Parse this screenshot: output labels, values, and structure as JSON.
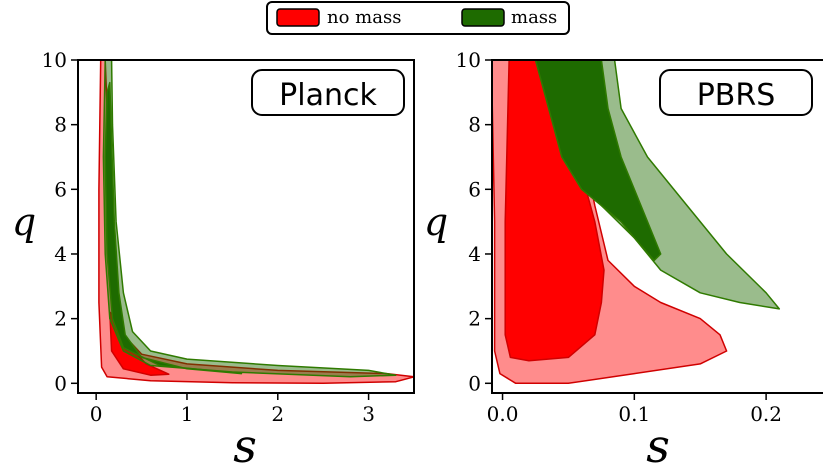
{
  "legend": {
    "entries": [
      {
        "label": "no mass",
        "color": "#ff0000"
      },
      {
        "label": "mass",
        "color": "#1e6b00"
      }
    ]
  },
  "chart_data": [
    {
      "type": "area",
      "title": "Planck",
      "xlabel": "s",
      "ylabel": "q",
      "xlim": [
        -0.2,
        3.5
      ],
      "ylim": [
        -0.3,
        10
      ],
      "xticks": [
        "0",
        "1",
        "2",
        "3"
      ],
      "yticks": [
        "0",
        "2",
        "4",
        "6",
        "8",
        "10"
      ],
      "grid": false,
      "legend_position": "top-center (shared)",
      "series": [
        {
          "name": "no mass",
          "level": "95%",
          "color": "#ff0000",
          "opacity": 0.45,
          "contour": [
            [
              0.05,
              10
            ],
            [
              0.03,
              6
            ],
            [
              0.03,
              2.5
            ],
            [
              0.06,
              0.5
            ],
            [
              0.12,
              0.2
            ],
            [
              0.6,
              0.08
            ],
            [
              1.5,
              0.02
            ],
            [
              2.5,
              0.0
            ],
            [
              3.3,
              0.05
            ],
            [
              3.5,
              0.2
            ],
            [
              3.2,
              0.3
            ],
            [
              2.0,
              0.4
            ],
            [
              1.0,
              0.6
            ],
            [
              0.5,
              0.9
            ],
            [
              0.3,
              1.5
            ],
            [
              0.22,
              3.0
            ],
            [
              0.16,
              5.5
            ],
            [
              0.12,
              8.5
            ],
            [
              0.1,
              10
            ]
          ]
        },
        {
          "name": "no mass",
          "level": "68%",
          "color": "#ff0000",
          "opacity": 1.0,
          "contour": [
            [
              0.15,
              2.2
            ],
            [
              0.17,
              1.0
            ],
            [
              0.3,
              0.45
            ],
            [
              0.6,
              0.25
            ],
            [
              0.8,
              0.28
            ],
            [
              0.55,
              0.6
            ],
            [
              0.35,
              1.2
            ],
            [
              0.25,
              2.0
            ]
          ]
        },
        {
          "name": "mass",
          "level": "95%",
          "color": "#1e6b00",
          "opacity": 0.45,
          "contour": [
            [
              0.1,
              10
            ],
            [
              0.08,
              7
            ],
            [
              0.1,
              4
            ],
            [
              0.15,
              2.0
            ],
            [
              0.3,
              1.0
            ],
            [
              0.6,
              0.55
            ],
            [
              1.5,
              0.35
            ],
            [
              2.8,
              0.2
            ],
            [
              3.3,
              0.25
            ],
            [
              3.0,
              0.4
            ],
            [
              2.0,
              0.55
            ],
            [
              1.0,
              0.75
            ],
            [
              0.6,
              1.0
            ],
            [
              0.4,
              1.6
            ],
            [
              0.3,
              2.8
            ],
            [
              0.22,
              5.0
            ],
            [
              0.18,
              8.0
            ],
            [
              0.17,
              10
            ]
          ]
        },
        {
          "name": "mass",
          "level": "68%",
          "color": "#1e6b00",
          "opacity": 1.0,
          "contour": [
            [
              0.12,
              9.0
            ],
            [
              0.1,
              7
            ],
            [
              0.12,
              4
            ],
            [
              0.18,
              2.0
            ],
            [
              0.3,
              1.1
            ],
            [
              0.7,
              0.55
            ],
            [
              1.6,
              0.3
            ],
            [
              1.0,
              0.45
            ],
            [
              0.5,
              0.8
            ],
            [
              0.32,
              1.5
            ],
            [
              0.25,
              2.8
            ],
            [
              0.2,
              5.0
            ],
            [
              0.17,
              7.5
            ],
            [
              0.15,
              9.3
            ]
          ]
        }
      ]
    },
    {
      "type": "area",
      "title": "PBRS",
      "xlabel": "s",
      "ylabel": "q",
      "xlim": [
        -0.008,
        0.25
      ],
      "ylim": [
        -0.3,
        10
      ],
      "xticks": [
        "0.0",
        "0.1",
        "0.2"
      ],
      "yticks": [
        "0",
        "2",
        "4",
        "6",
        "8",
        "10"
      ],
      "grid": false,
      "series": [
        {
          "name": "no mass",
          "level": "95%",
          "color": "#ff0000",
          "opacity": 0.45,
          "contour": [
            [
              -0.008,
              9.0
            ],
            [
              -0.006,
              5.0
            ],
            [
              -0.006,
              1.0
            ],
            [
              -0.002,
              0.3
            ],
            [
              0.01,
              0.0
            ],
            [
              0.05,
              0.0
            ],
            [
              0.1,
              0.3
            ],
            [
              0.15,
              0.6
            ],
            [
              0.17,
              1.0
            ],
            [
              0.165,
              1.5
            ],
            [
              0.15,
              2.0
            ],
            [
              0.12,
              2.5
            ],
            [
              0.1,
              3.0
            ],
            [
              0.08,
              3.8
            ],
            [
              0.07,
              5.5
            ],
            [
              0.06,
              7.5
            ],
            [
              0.05,
              9.0
            ],
            [
              0.045,
              10
            ],
            [
              -0.008,
              10
            ]
          ]
        },
        {
          "name": "no mass",
          "level": "68%",
          "color": "#ff0000",
          "opacity": 1.0,
          "contour": [
            [
              0.005,
              10
            ],
            [
              0.002,
              5
            ],
            [
              0.002,
              1.5
            ],
            [
              0.006,
              0.8
            ],
            [
              0.02,
              0.7
            ],
            [
              0.05,
              0.8
            ],
            [
              0.07,
              1.5
            ],
            [
              0.075,
              2.5
            ],
            [
              0.077,
              3.5
            ],
            [
              0.07,
              5.0
            ],
            [
              0.06,
              6.5
            ],
            [
              0.05,
              8.0
            ],
            [
              0.04,
              9.2
            ],
            [
              0.035,
              10
            ]
          ]
        },
        {
          "name": "mass",
          "level": "95%",
          "color": "#1e6b00",
          "opacity": 0.45,
          "contour": [
            [
              0.025,
              10
            ],
            [
              0.04,
              8.0
            ],
            [
              0.055,
              6.5
            ],
            [
              0.075,
              5.5
            ],
            [
              0.1,
              4.5
            ],
            [
              0.12,
              3.5
            ],
            [
              0.15,
              2.8
            ],
            [
              0.18,
              2.5
            ],
            [
              0.21,
              2.3
            ],
            [
              0.2,
              2.8
            ],
            [
              0.17,
              4.0
            ],
            [
              0.14,
              5.5
            ],
            [
              0.11,
              7.0
            ],
            [
              0.09,
              8.5
            ],
            [
              0.085,
              10
            ]
          ]
        },
        {
          "name": "mass",
          "level": "68%",
          "color": "#1e6b00",
          "opacity": 1.0,
          "contour": [
            [
              0.025,
              10
            ],
            [
              0.035,
              8.5
            ],
            [
              0.045,
              7.0
            ],
            [
              0.06,
              6.0
            ],
            [
              0.075,
              5.5
            ],
            [
              0.09,
              5.0
            ],
            [
              0.1,
              4.5
            ],
            [
              0.115,
              3.8
            ],
            [
              0.12,
              4.0
            ],
            [
              0.11,
              5.0
            ],
            [
              0.1,
              6.0
            ],
            [
              0.09,
              7.0
            ],
            [
              0.08,
              8.5
            ],
            [
              0.075,
              10
            ]
          ]
        }
      ]
    }
  ]
}
